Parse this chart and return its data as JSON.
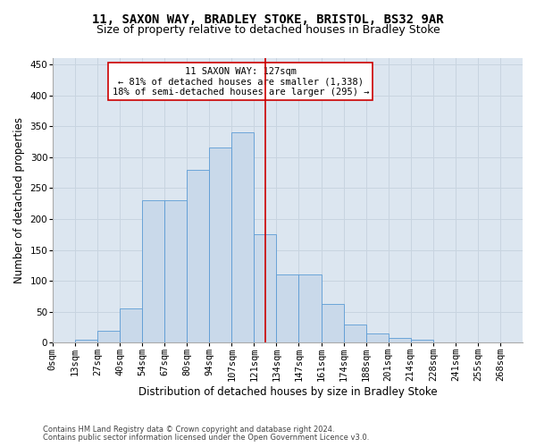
{
  "title": "11, SAXON WAY, BRADLEY STOKE, BRISTOL, BS32 9AR",
  "subtitle": "Size of property relative to detached houses in Bradley Stoke",
  "xlabel": "Distribution of detached houses by size in Bradley Stoke",
  "ylabel": "Number of detached properties",
  "footnote1": "Contains HM Land Registry data © Crown copyright and database right 2024.",
  "footnote2": "Contains public sector information licensed under the Open Government Licence v3.0.",
  "annotation_line1": "11 SAXON WAY: 127sqm",
  "annotation_line2": "← 81% of detached houses are smaller (1,338)",
  "annotation_line3": "18% of semi-detached houses are larger (295) →",
  "property_size": 127,
  "bar_labels": [
    "0sqm",
    "13sqm",
    "27sqm",
    "40sqm",
    "54sqm",
    "67sqm",
    "80sqm",
    "94sqm",
    "107sqm",
    "121sqm",
    "134sqm",
    "147sqm",
    "161sqm",
    "174sqm",
    "188sqm",
    "201sqm",
    "214sqm",
    "228sqm",
    "241sqm",
    "255sqm",
    "268sqm"
  ],
  "bar_heights": [
    0,
    5,
    20,
    55,
    230,
    230,
    280,
    315,
    340,
    175,
    110,
    110,
    62,
    30,
    15,
    8,
    5,
    0,
    0,
    0,
    0
  ],
  "bar_color": "#c9d9ea",
  "bar_edgecolor": "#5b9bd5",
  "vline_color": "#cc0000",
  "vline_bin": 9,
  "annotation_box_edgecolor": "#cc0000",
  "annotation_box_facecolor": "#ffffff",
  "grid_color": "#c8d4e0",
  "background_color": "#dce6f0",
  "ylim": [
    0,
    460
  ],
  "yticks": [
    0,
    50,
    100,
    150,
    200,
    250,
    300,
    350,
    400,
    450
  ],
  "title_fontsize": 10,
  "subtitle_fontsize": 9,
  "xlabel_fontsize": 8.5,
  "ylabel_fontsize": 8.5,
  "tick_fontsize": 7.5,
  "annotation_fontsize": 7.5,
  "footnote_fontsize": 6
}
